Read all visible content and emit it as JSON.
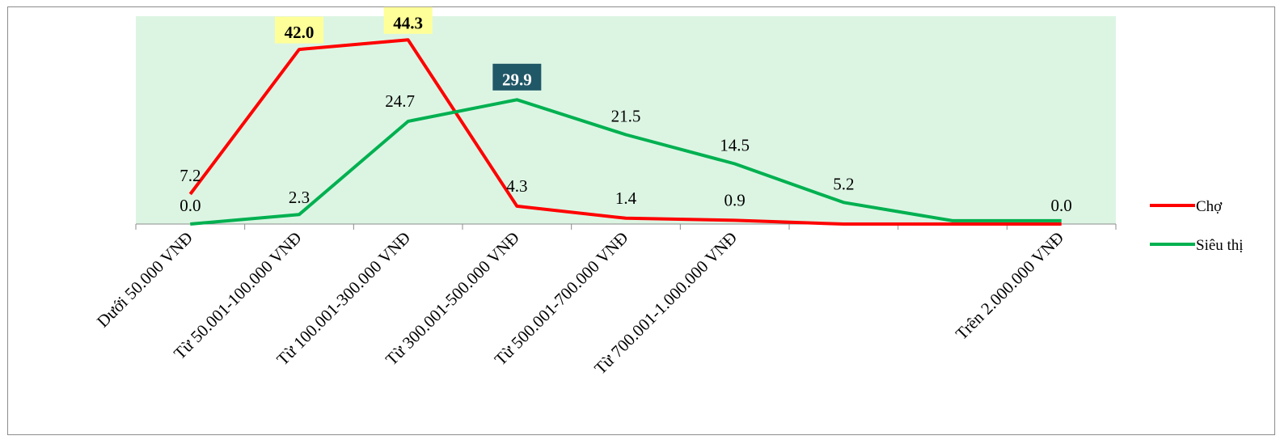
{
  "chart_data": {
    "type": "line",
    "title": "",
    "xlabel": "",
    "ylabel": "",
    "categories": [
      "Dưới 50.000 VNĐ",
      "Từ 50.001-100.000 VNĐ",
      "Từ 100.001-300.000 VNĐ",
      "Từ 300.001-500.000 VNĐ",
      "Từ 500.001-700.000 VNĐ",
      "Từ 700.001-1.000.000 VNĐ",
      "",
      "",
      "Trên 2.000.000 VNĐ"
    ],
    "series": [
      {
        "name": "Chợ",
        "color": "#ff0000",
        "values": [
          7.2,
          42.0,
          44.3,
          4.3,
          1.4,
          0.9,
          0.0,
          0.0,
          0.0
        ],
        "labels": [
          "7.2",
          "42.0",
          "44.3",
          "4.3",
          "1.4",
          "0.9",
          "",
          "",
          "0.0"
        ]
      },
      {
        "name": "Siêu thị",
        "color": "#00b050",
        "values": [
          0.0,
          2.3,
          24.7,
          29.9,
          21.5,
          14.5,
          5.2,
          0.8,
          0.8
        ],
        "labels": [
          "0.0",
          "2.3",
          "24.7",
          "29.9",
          "21.5",
          "14.5",
          "5.2",
          "",
          ""
        ]
      }
    ],
    "highlighted_labels": [
      {
        "series": 0,
        "index": 1,
        "style": "yellow"
      },
      {
        "series": 0,
        "index": 2,
        "style": "yellow"
      },
      {
        "series": 1,
        "index": 3,
        "style": "dark"
      }
    ],
    "ylim": [
      0,
      50
    ],
    "grid": false,
    "plot_background": "#dcf5e3",
    "legend_position": "right"
  }
}
